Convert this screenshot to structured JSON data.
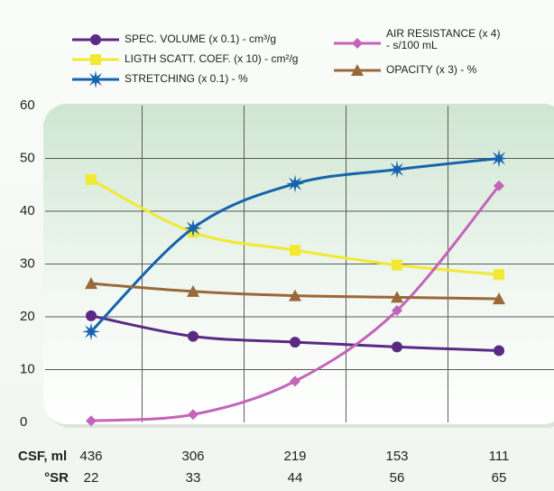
{
  "chart_data": {
    "type": "line",
    "categories": [
      436,
      306,
      219,
      153,
      111
    ],
    "sr": [
      22,
      33,
      44,
      56,
      65
    ],
    "row_labels": [
      "CSF, ml",
      "°SR"
    ],
    "ylim": [
      0,
      60
    ],
    "yticks": [
      0,
      10,
      20,
      30,
      40,
      50,
      60
    ],
    "grid": true,
    "series": [
      {
        "name": "SPEC. VOLUME (x 0.1) - cm³/g",
        "color": "#5a2a84",
        "marker": "circle",
        "values": [
          20.2,
          16.3,
          15.2,
          14.3,
          13.6
        ]
      },
      {
        "name": "LIGTH SCATT. COEF. (x 10) - cm²/g",
        "color": "#f2e933",
        "marker": "square",
        "values": [
          46,
          36,
          32.6,
          29.8,
          28
        ]
      },
      {
        "name": "STRETCHING (x 0.1) - %",
        "color": "#1663ae",
        "marker": "star",
        "values": [
          17.2,
          36.8,
          45.2,
          47.9,
          50
        ]
      },
      {
        "name": "AIR RESISTANCE (x 4) - s/100 mL",
        "color": "#c464b9",
        "marker": "diamond",
        "values": [
          0.3,
          1.5,
          7.8,
          21.2,
          44.8
        ]
      },
      {
        "name": "OPACITY (x 3) - %",
        "color": "#9a683a",
        "marker": "triangle",
        "values": [
          26.3,
          24.8,
          24,
          23.7,
          23.4
        ]
      }
    ]
  }
}
